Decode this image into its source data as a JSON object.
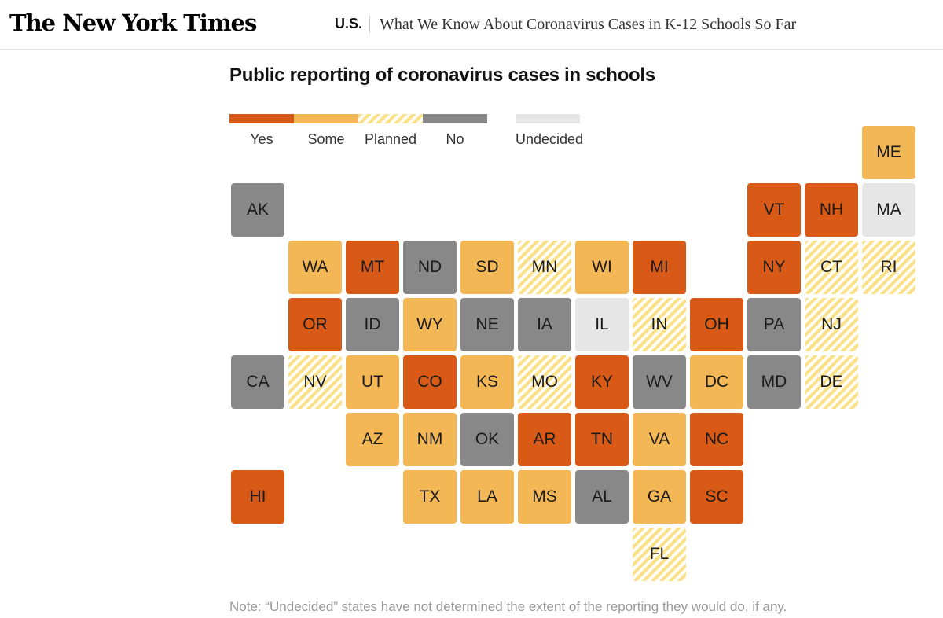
{
  "header": {
    "logo": "The New York Times",
    "section": "U.S.",
    "headline": "What We Know About Coronavirus Cases in K-12 Schools So Far"
  },
  "chart_title": "Public reporting of coronavirus cases in schools",
  "legend": [
    {
      "key": "yes",
      "label": "Yes",
      "color": "#d85a16"
    },
    {
      "key": "some",
      "label": "Some",
      "color": "#f3b855"
    },
    {
      "key": "planned",
      "label": "Planned",
      "color": "#fbe08a"
    },
    {
      "key": "no",
      "label": "No",
      "color": "#888888"
    },
    {
      "key": "undecided",
      "label": "Undecided",
      "color": "#e6e6e6"
    }
  ],
  "note": "Note: “Undecided” states have not determined the extent of the reporting they would do, if any.",
  "chart_data": {
    "type": "tile-map",
    "title": "Public reporting of coronavirus cases in schools",
    "categories": [
      "Yes",
      "Some",
      "Planned",
      "No",
      "Undecided"
    ],
    "states": [
      {
        "abbr": "ME",
        "status": "some",
        "row": 0,
        "col": 11
      },
      {
        "abbr": "AK",
        "status": "no",
        "row": 1,
        "col": 0
      },
      {
        "abbr": "VT",
        "status": "yes",
        "row": 1,
        "col": 9
      },
      {
        "abbr": "NH",
        "status": "yes",
        "row": 1,
        "col": 10
      },
      {
        "abbr": "MA",
        "status": "undecided",
        "row": 1,
        "col": 11
      },
      {
        "abbr": "WA",
        "status": "some",
        "row": 2,
        "col": 1
      },
      {
        "abbr": "MT",
        "status": "yes",
        "row": 2,
        "col": 2
      },
      {
        "abbr": "ND",
        "status": "no",
        "row": 2,
        "col": 3
      },
      {
        "abbr": "SD",
        "status": "some",
        "row": 2,
        "col": 4
      },
      {
        "abbr": "MN",
        "status": "planned",
        "row": 2,
        "col": 5
      },
      {
        "abbr": "WI",
        "status": "some",
        "row": 2,
        "col": 6
      },
      {
        "abbr": "MI",
        "status": "yes",
        "row": 2,
        "col": 7
      },
      {
        "abbr": "NY",
        "status": "yes",
        "row": 2,
        "col": 9
      },
      {
        "abbr": "CT",
        "status": "planned",
        "row": 2,
        "col": 10
      },
      {
        "abbr": "RI",
        "status": "planned",
        "row": 2,
        "col": 11
      },
      {
        "abbr": "OR",
        "status": "yes",
        "row": 3,
        "col": 1
      },
      {
        "abbr": "ID",
        "status": "no",
        "row": 3,
        "col": 2
      },
      {
        "abbr": "WY",
        "status": "some",
        "row": 3,
        "col": 3
      },
      {
        "abbr": "NE",
        "status": "no",
        "row": 3,
        "col": 4
      },
      {
        "abbr": "IA",
        "status": "no",
        "row": 3,
        "col": 5
      },
      {
        "abbr": "IL",
        "status": "undecided",
        "row": 3,
        "col": 6
      },
      {
        "abbr": "IN",
        "status": "planned",
        "row": 3,
        "col": 7
      },
      {
        "abbr": "OH",
        "status": "yes",
        "row": 3,
        "col": 8
      },
      {
        "abbr": "PA",
        "status": "no",
        "row": 3,
        "col": 9
      },
      {
        "abbr": "NJ",
        "status": "planned",
        "row": 3,
        "col": 10
      },
      {
        "abbr": "CA",
        "status": "no",
        "row": 4,
        "col": 0
      },
      {
        "abbr": "NV",
        "status": "planned",
        "row": 4,
        "col": 1
      },
      {
        "abbr": "UT",
        "status": "some",
        "row": 4,
        "col": 2
      },
      {
        "abbr": "CO",
        "status": "yes",
        "row": 4,
        "col": 3
      },
      {
        "abbr": "KS",
        "status": "some",
        "row": 4,
        "col": 4
      },
      {
        "abbr": "MO",
        "status": "planned",
        "row": 4,
        "col": 5
      },
      {
        "abbr": "KY",
        "status": "yes",
        "row": 4,
        "col": 6
      },
      {
        "abbr": "WV",
        "status": "no",
        "row": 4,
        "col": 7
      },
      {
        "abbr": "DC",
        "status": "some",
        "row": 4,
        "col": 8
      },
      {
        "abbr": "MD",
        "status": "no",
        "row": 4,
        "col": 9
      },
      {
        "abbr": "DE",
        "status": "planned",
        "row": 4,
        "col": 10
      },
      {
        "abbr": "AZ",
        "status": "some",
        "row": 5,
        "col": 2
      },
      {
        "abbr": "NM",
        "status": "some",
        "row": 5,
        "col": 3
      },
      {
        "abbr": "OK",
        "status": "no",
        "row": 5,
        "col": 4
      },
      {
        "abbr": "AR",
        "status": "yes",
        "row": 5,
        "col": 5
      },
      {
        "abbr": "TN",
        "status": "yes",
        "row": 5,
        "col": 6
      },
      {
        "abbr": "VA",
        "status": "some",
        "row": 5,
        "col": 7
      },
      {
        "abbr": "NC",
        "status": "yes",
        "row": 5,
        "col": 8
      },
      {
        "abbr": "HI",
        "status": "yes",
        "row": 6,
        "col": 0
      },
      {
        "abbr": "TX",
        "status": "some",
        "row": 6,
        "col": 3
      },
      {
        "abbr": "LA",
        "status": "some",
        "row": 6,
        "col": 4
      },
      {
        "abbr": "MS",
        "status": "some",
        "row": 6,
        "col": 5
      },
      {
        "abbr": "AL",
        "status": "no",
        "row": 6,
        "col": 6
      },
      {
        "abbr": "GA",
        "status": "some",
        "row": 6,
        "col": 7
      },
      {
        "abbr": "SC",
        "status": "yes",
        "row": 6,
        "col": 8
      },
      {
        "abbr": "FL",
        "status": "planned",
        "row": 7,
        "col": 7
      }
    ]
  }
}
